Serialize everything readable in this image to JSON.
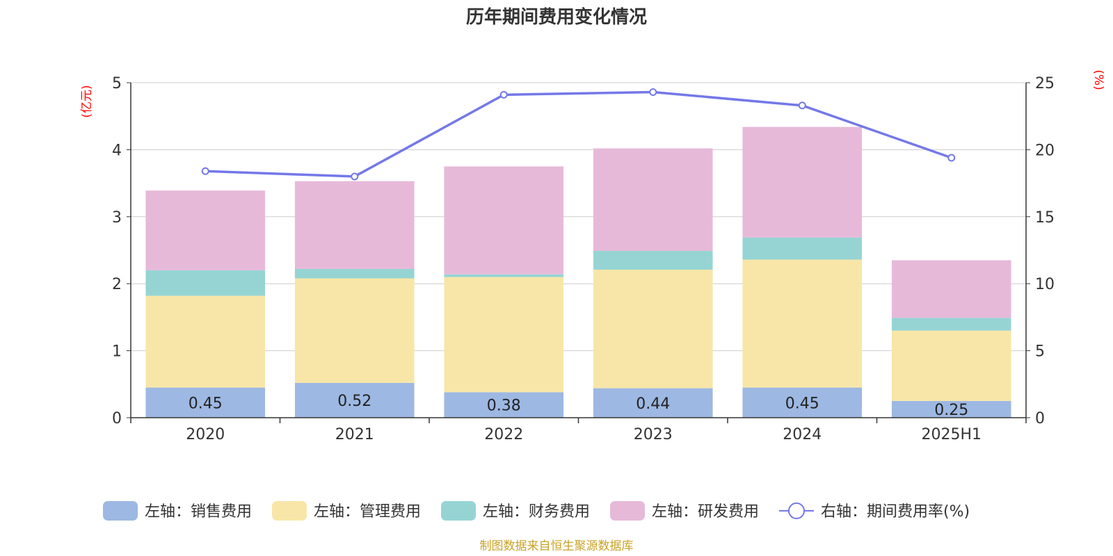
{
  "chart_data": {
    "type": "bar",
    "title": "历年期间费用变化情况",
    "categories": [
      "2020",
      "2021",
      "2022",
      "2023",
      "2024",
      "2025H1"
    ],
    "left_axis": {
      "unit": "(亿元)",
      "ylim": [
        0,
        5
      ],
      "ticks": [
        "0",
        "1",
        "2",
        "3",
        "4",
        "5"
      ]
    },
    "right_axis": {
      "unit": "(%)",
      "ylim": [
        0,
        25
      ],
      "ticks": [
        "0",
        "5",
        "10",
        "15",
        "20",
        "25"
      ]
    },
    "series": [
      {
        "name": "左轴：销售费用",
        "axis": "left",
        "type": "bar",
        "stack": true,
        "color": "#9db8e2",
        "values": [
          0.45,
          0.52,
          0.38,
          0.44,
          0.45,
          0.25
        ],
        "labels": [
          "0.45",
          "0.52",
          "0.38",
          "0.44",
          "0.45",
          "0.25"
        ]
      },
      {
        "name": "左轴：管理费用",
        "axis": "left",
        "type": "bar",
        "stack": true,
        "color": "#f7e6a7",
        "values": [
          1.37,
          1.56,
          1.72,
          1.77,
          1.91,
          1.05
        ]
      },
      {
        "name": "左轴：财务费用",
        "axis": "left",
        "type": "bar",
        "stack": true,
        "color": "#96d4d4",
        "values": [
          0.38,
          0.14,
          0.04,
          0.28,
          0.33,
          0.19
        ]
      },
      {
        "name": "左轴：研发费用",
        "axis": "left",
        "type": "bar",
        "stack": true,
        "color": "#e7b9d9",
        "values": [
          1.19,
          1.31,
          1.61,
          1.53,
          1.65,
          0.86
        ]
      },
      {
        "name": "右轴：期间费用率(%)",
        "axis": "right",
        "type": "line",
        "color": "#7478e8",
        "values": [
          18.4,
          18.0,
          24.1,
          24.3,
          23.3,
          19.4
        ]
      }
    ],
    "grid": true,
    "legend_position": "bottom"
  },
  "source": "制图数据来自恒生聚源数据库"
}
